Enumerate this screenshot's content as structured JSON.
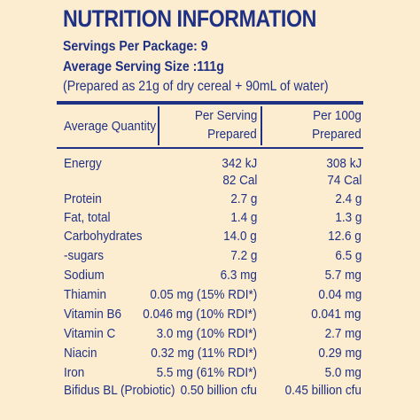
{
  "title": "NUTRITION INFORMATION",
  "servings_per_package": "Servings Per Package: 9",
  "average_serving_size": "Average Serving Size :111g",
  "prepared_note": "(Prepared as 21g of dry cereal + 90mL of water)",
  "table": {
    "headers": {
      "quantity": "Average Quantity",
      "per_serving_line1": "Per Serving",
      "per_serving_line2": "Prepared",
      "per_100g_line1": "Per 100g",
      "per_100g_line2": "Prepared"
    },
    "rows": [
      {
        "name": "Energy",
        "per_serving": "342 kJ",
        "per_100g": "308 kJ"
      },
      {
        "name": "",
        "per_serving": "82 Cal",
        "per_100g": "74 Cal"
      },
      {
        "name": "Protein",
        "per_serving": "2.7 g",
        "per_100g": "2.4 g"
      },
      {
        "name": "Fat, total",
        "per_serving": "1.4 g",
        "per_100g": "1.3 g"
      },
      {
        "name": "Carbohydrates",
        "per_serving": "14.0 g",
        "per_100g": "12.6 g"
      },
      {
        "name": "-sugars",
        "per_serving": "7.2 g",
        "per_100g": "6.5 g"
      },
      {
        "name": "Sodium",
        "per_serving": "6.3 mg",
        "per_100g": "5.7 mg"
      },
      {
        "name": "Thiamin",
        "per_serving": "0.05 mg (15% RDI*)",
        "per_100g": "0.04 mg"
      },
      {
        "name": "Vitamin B6",
        "per_serving": "0.046 mg (10% RDI*)",
        "per_100g": "0.041 mg"
      },
      {
        "name": "Vitamin C",
        "per_serving": "3.0 mg (10% RDI*)",
        "per_100g": "2.7 mg"
      },
      {
        "name": "Niacin",
        "per_serving": "0.32 mg (11% RDI*)",
        "per_100g": "0.29 mg"
      },
      {
        "name": "Iron",
        "per_serving": "5.5 mg (61% RDI*)",
        "per_100g": "5.0 mg"
      },
      {
        "name": "Bifidus BL (Probiotic)",
        "per_serving": "0.50 billion cfu",
        "per_100g": "0.45 billion cfu"
      }
    ]
  },
  "colors": {
    "text": "#1e3185",
    "background": "#fdedd0"
  }
}
